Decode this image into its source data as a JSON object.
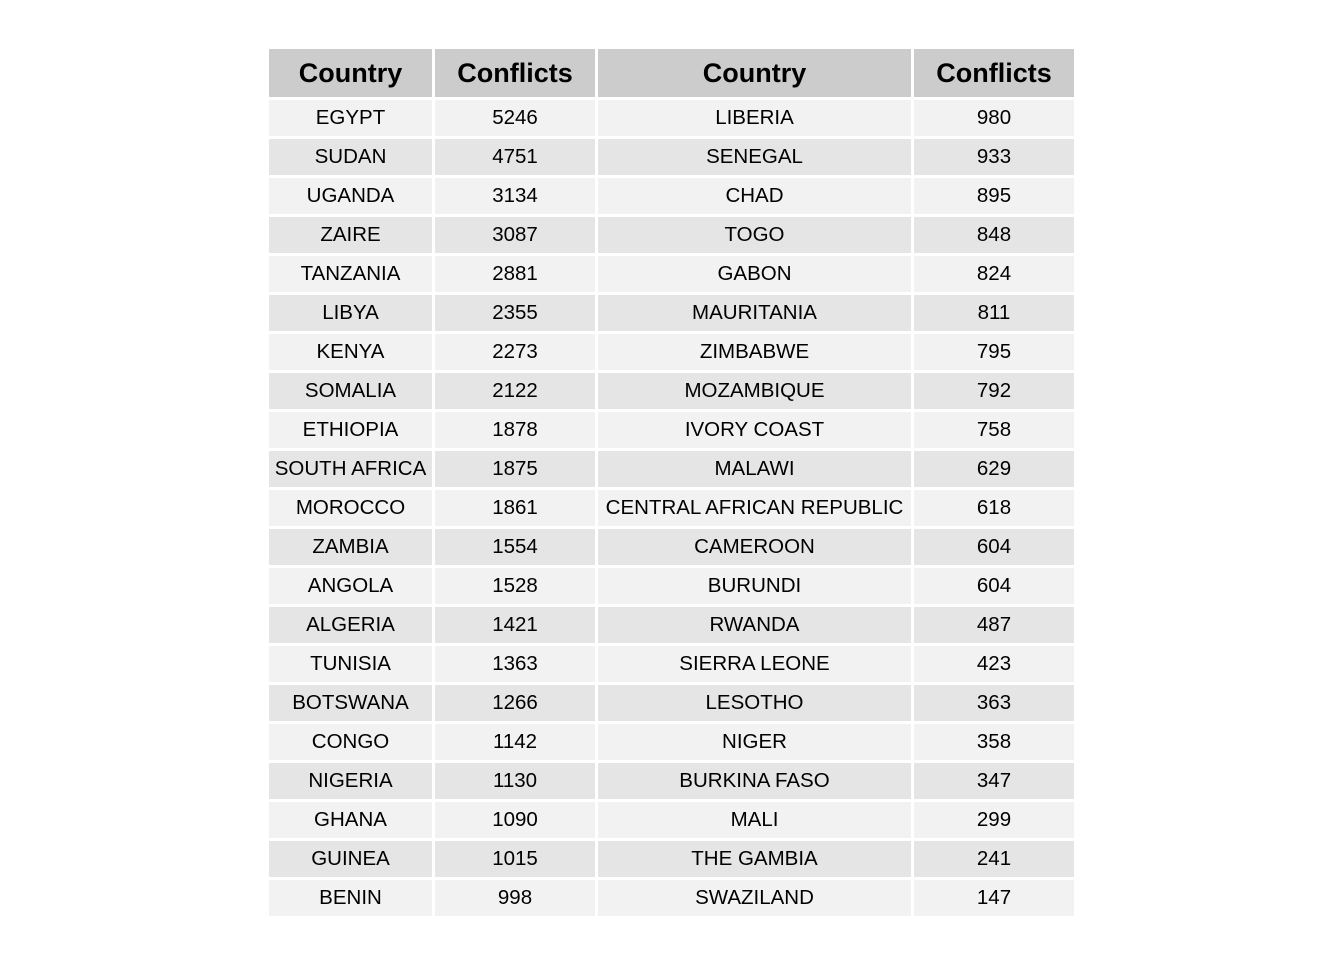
{
  "chart_data": {
    "type": "table",
    "columns": [
      "Country",
      "Conflicts",
      "Country",
      "Conflicts"
    ],
    "rows": [
      [
        "EGYPT",
        "5246",
        "LIBERIA",
        "980"
      ],
      [
        "SUDAN",
        "4751",
        "SENEGAL",
        "933"
      ],
      [
        "UGANDA",
        "3134",
        "CHAD",
        "895"
      ],
      [
        "ZAIRE",
        "3087",
        "TOGO",
        "848"
      ],
      [
        "TANZANIA",
        "2881",
        "GABON",
        "824"
      ],
      [
        "LIBYA",
        "2355",
        "MAURITANIA",
        "811"
      ],
      [
        "KENYA",
        "2273",
        "ZIMBABWE",
        "795"
      ],
      [
        "SOMALIA",
        "2122",
        "MOZAMBIQUE",
        "792"
      ],
      [
        "ETHIOPIA",
        "1878",
        "IVORY COAST",
        "758"
      ],
      [
        "SOUTH AFRICA",
        "1875",
        "MALAWI",
        "629"
      ],
      [
        "MOROCCO",
        "1861",
        "CENTRAL AFRICAN REPUBLIC",
        "618"
      ],
      [
        "ZAMBIA",
        "1554",
        "CAMEROON",
        "604"
      ],
      [
        "ANGOLA",
        "1528",
        "BURUNDI",
        "604"
      ],
      [
        "ALGERIA",
        "1421",
        "RWANDA",
        "487"
      ],
      [
        "TUNISIA",
        "1363",
        "SIERRA LEONE",
        "423"
      ],
      [
        "BOTSWANA",
        "1266",
        "LESOTHO",
        "363"
      ],
      [
        "CONGO",
        "1142",
        "NIGER",
        "358"
      ],
      [
        "NIGERIA",
        "1130",
        "BURKINA FASO",
        "347"
      ],
      [
        "GHANA",
        "1090",
        "MALI",
        "299"
      ],
      [
        "GUINEA",
        "1015",
        "THE GAMBIA",
        "241"
      ],
      [
        "BENIN",
        "998",
        "SWAZILAND",
        "147"
      ]
    ],
    "colors": {
      "header_bg": "#cccccc",
      "row_odd_bg": "#f2f2f2",
      "row_even_bg": "#e5e5e5",
      "border": "#ffffff"
    }
  }
}
